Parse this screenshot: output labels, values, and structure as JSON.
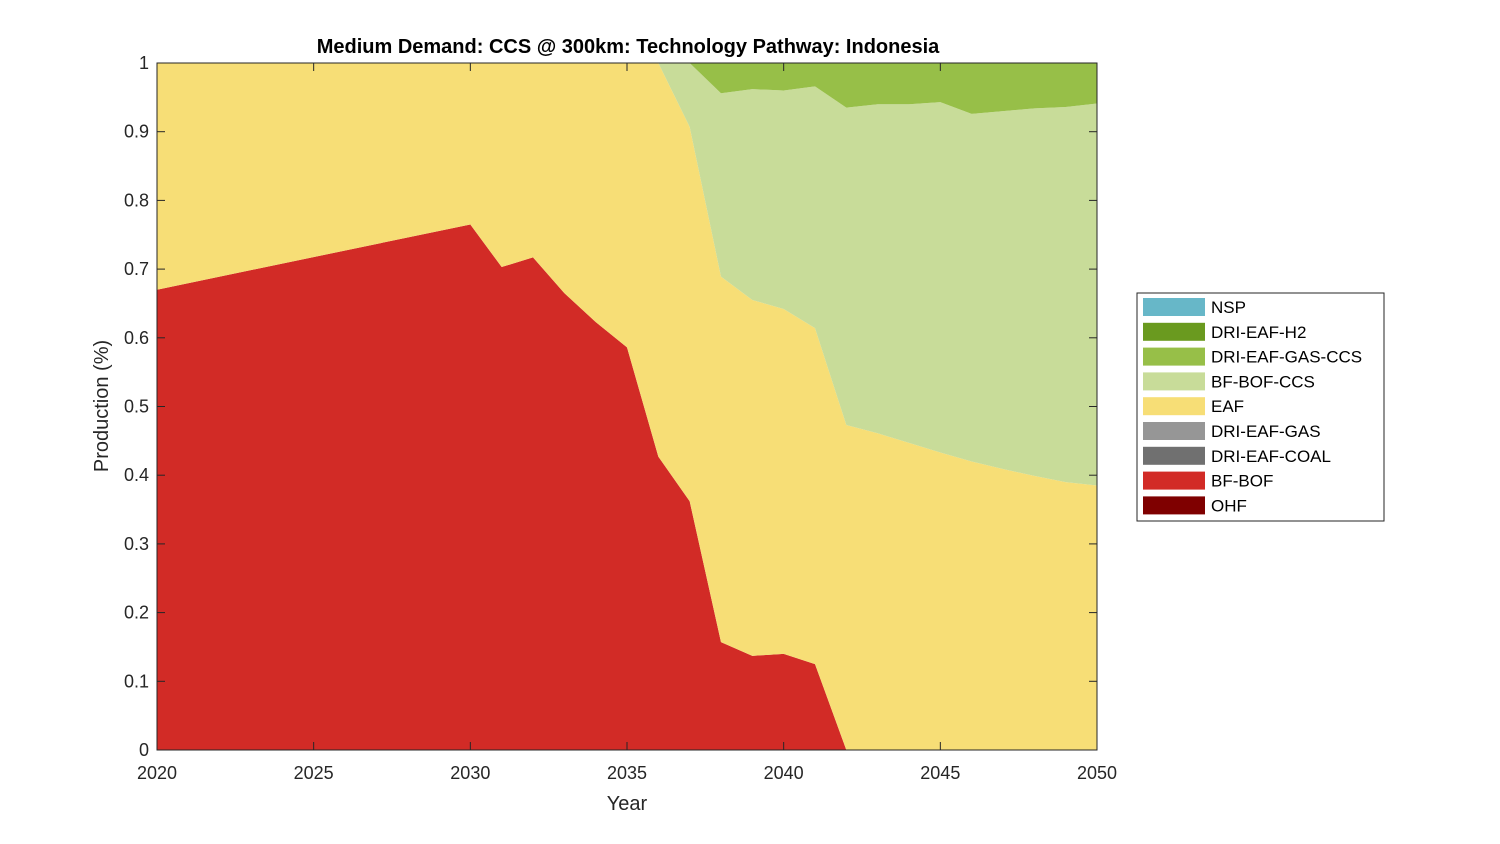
{
  "chart_data": {
    "type": "area",
    "stacked": true,
    "title": "Medium Demand: CCS @ 300km: Technology Pathway: Indonesia",
    "xlabel": "Year",
    "ylabel": "Production (%)",
    "xlim": [
      2020,
      2050
    ],
    "ylim": [
      0,
      1
    ],
    "xticks": [
      "2020",
      "2025",
      "2030",
      "2035",
      "2040",
      "2045",
      "2050"
    ],
    "yticks": [
      "0",
      "0.1",
      "0.2",
      "0.3",
      "0.4",
      "0.5",
      "0.6",
      "0.7",
      "0.8",
      "0.9",
      "1"
    ],
    "grid": false,
    "legend_position": "right",
    "x": [
      2020,
      2030,
      2031,
      2032,
      2033,
      2034,
      2035,
      2036,
      2037,
      2038,
      2039,
      2040,
      2041,
      2042,
      2043,
      2044,
      2045,
      2046,
      2047,
      2048,
      2049,
      2050
    ],
    "series": [
      {
        "name": "OHF",
        "color": "#7f0000",
        "values": [
          0,
          0,
          0,
          0,
          0,
          0,
          0,
          0,
          0,
          0,
          0,
          0,
          0,
          0,
          0,
          0,
          0,
          0,
          0,
          0,
          0,
          0
        ]
      },
      {
        "name": "BF-BOF",
        "color": "#d22b26",
        "values": [
          0.67,
          0.765,
          0.703,
          0.717,
          0.665,
          0.623,
          0.586,
          0.427,
          0.362,
          0.157,
          0.137,
          0.14,
          0.125,
          0,
          0,
          0,
          0,
          0,
          0,
          0,
          0,
          0
        ]
      },
      {
        "name": "DRI-EAF-COAL",
        "color": "#707070",
        "values": [
          0,
          0,
          0,
          0,
          0,
          0,
          0,
          0,
          0,
          0,
          0,
          0,
          0,
          0,
          0,
          0,
          0,
          0,
          0,
          0,
          0,
          0
        ]
      },
      {
        "name": "DRI-EAF-GAS",
        "color": "#969696",
        "values": [
          0,
          0,
          0,
          0,
          0,
          0,
          0,
          0,
          0,
          0,
          0,
          0,
          0,
          0,
          0,
          0,
          0,
          0,
          0,
          0,
          0,
          0
        ]
      },
      {
        "name": "EAF",
        "color": "#f7de76",
        "values": [
          0.33,
          0.235,
          0.297,
          0.283,
          0.335,
          0.377,
          0.414,
          0.573,
          0.545,
          0.532,
          0.518,
          0.502,
          0.489,
          0.473,
          0.461,
          0.447,
          0.433,
          0.42,
          0.409,
          0.399,
          0.39,
          0.385
        ]
      },
      {
        "name": "BF-BOF-CCS",
        "color": "#c8dc99",
        "values": [
          0,
          0,
          0,
          0,
          0,
          0,
          0,
          0,
          0.093,
          0.267,
          0.307,
          0.318,
          0.352,
          0.462,
          0.479,
          0.493,
          0.51,
          0.506,
          0.521,
          0.535,
          0.546,
          0.556
        ]
      },
      {
        "name": "DRI-EAF-GAS-CCS",
        "color": "#97bf48",
        "values": [
          0,
          0,
          0,
          0,
          0,
          0,
          0,
          0,
          0,
          0.044,
          0.038,
          0.04,
          0.034,
          0.065,
          0.06,
          0.06,
          0.057,
          0.074,
          0.07,
          0.066,
          0.064,
          0.059
        ]
      },
      {
        "name": "DRI-EAF-H2",
        "color": "#6a9a1f",
        "values": [
          0,
          0,
          0,
          0,
          0,
          0,
          0,
          0,
          0,
          0,
          0,
          0,
          0,
          0,
          0,
          0,
          0,
          0,
          0,
          0,
          0,
          0
        ]
      },
      {
        "name": "NSP",
        "color": "#67b7c8",
        "values": [
          0,
          0,
          0,
          0,
          0,
          0,
          0,
          0,
          0,
          0,
          0,
          0,
          0,
          0,
          0,
          0,
          0,
          0,
          0,
          0,
          0,
          0
        ]
      }
    ]
  }
}
